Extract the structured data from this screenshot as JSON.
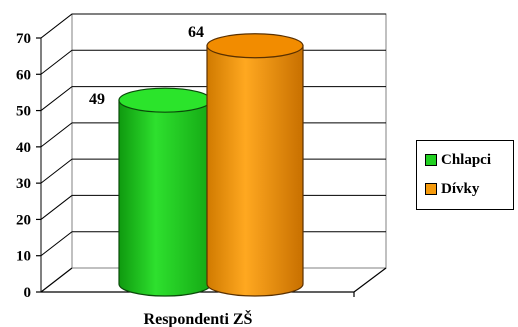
{
  "chart_data": {
    "type": "bar",
    "categories": [
      "Respondenti ZŠ"
    ],
    "series": [
      {
        "name": "Chlapci",
        "values": [
          49
        ],
        "color": "#22d022"
      },
      {
        "name": "Dívky",
        "values": [
          64
        ],
        "color": "#f59a0c"
      }
    ],
    "ylim": [
      0,
      70
    ],
    "yticks": [
      "0",
      "10",
      "20",
      "30",
      "40",
      "50",
      "60",
      "70"
    ],
    "grid": true,
    "legend": "right"
  }
}
